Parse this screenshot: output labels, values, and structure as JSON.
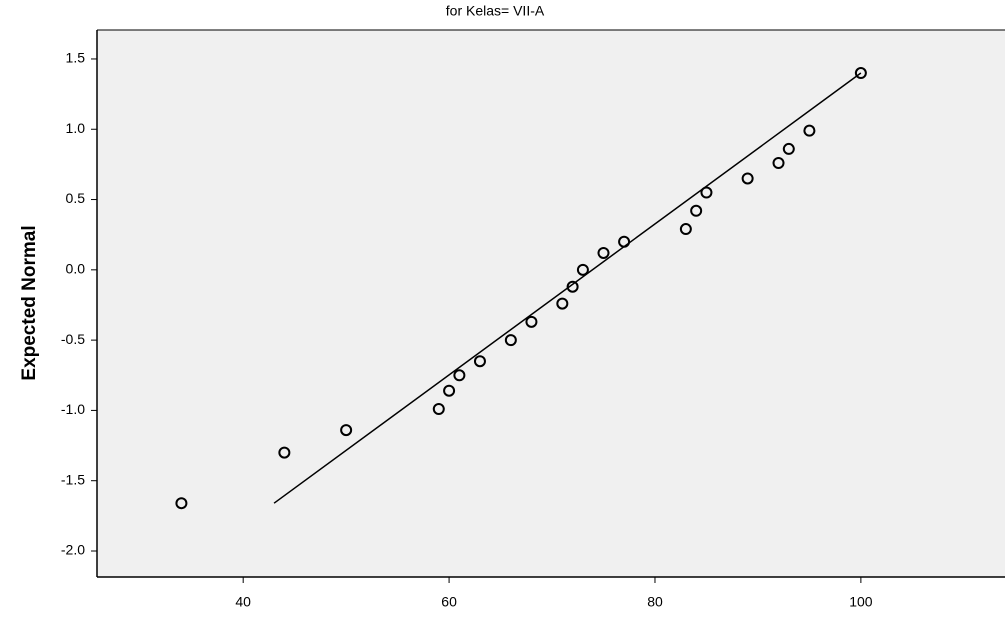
{
  "chart_data": {
    "type": "scatter",
    "title": "for Kelas= VII-A",
    "y_label": "Expected Normal",
    "x": [
      34,
      44,
      50,
      59,
      60,
      61,
      63,
      66,
      68,
      71,
      72,
      73,
      75,
      77,
      83,
      84,
      85,
      89,
      92,
      93,
      95,
      100
    ],
    "values": [
      -1.66,
      -1.3,
      -1.14,
      -0.99,
      -0.86,
      -0.75,
      -0.65,
      -0.5,
      -0.37,
      -0.24,
      -0.12,
      0,
      0.12,
      0.2,
      0.29,
      0.42,
      0.55,
      0.65,
      0.76,
      0.86,
      0.99,
      1.4
    ],
    "color": "#000000",
    "reference_line": {
      "x": [
        43,
        100
      ],
      "y": [
        -1.66,
        1.4
      ],
      "color": "#000000"
    },
    "xlim": [
      25.8,
      114
    ],
    "xticks": [
      40,
      60,
      80,
      100
    ],
    "ylim": [
      -2.185,
      1.706
    ],
    "yticks": [
      1.5,
      {
        "value": 1,
        "label": "1.0"
      },
      0.5,
      {
        "value": 0,
        "label": "0.0"
      },
      -0.5,
      {
        "value": -1,
        "label": "-1.0"
      },
      -1.5,
      {
        "value": -2,
        "label": "-2.0"
      }
    ]
  }
}
